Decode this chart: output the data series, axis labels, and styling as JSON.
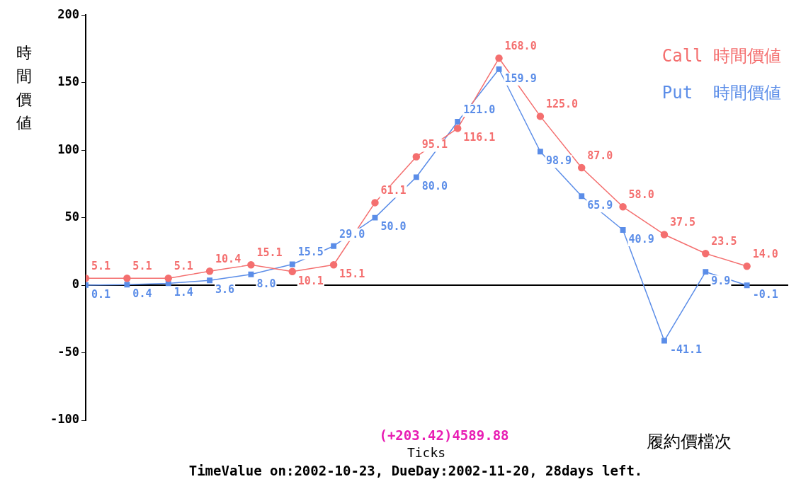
{
  "chart_data": {
    "type": "line",
    "xlabel": "Ticks",
    "ylabel": "時間價値",
    "categories": [
      null,
      null,
      null,
      null,
      null,
      null,
      null,
      null,
      null,
      null,
      null,
      null,
      null,
      null,
      null,
      null,
      null
    ],
    "series": [
      {
        "name": "Call 時間價値",
        "color": "#f46f6f",
        "marker": "circle",
        "values": [
          5.1,
          5.1,
          5.1,
          10.4,
          15.1,
          10.1,
          15.1,
          61.1,
          95.1,
          116.1,
          168.0,
          125.0,
          87.0,
          58.0,
          37.5,
          23.5,
          14.0
        ],
        "value_labels": [
          "5.1",
          "5.1",
          "5.1",
          "10.4",
          "15.1",
          "10.1",
          "15.1",
          "61.1",
          "95.1",
          "116.1",
          "168.0",
          "125.0",
          "87.0",
          "58.0",
          "37.5",
          "23.5",
          "14.0"
        ]
      },
      {
        "name": "Put  時間價値",
        "color": "#5b8de8",
        "marker": "square",
        "values": [
          0.1,
          0.4,
          1.4,
          3.6,
          8.0,
          15.5,
          29.0,
          50.0,
          80.0,
          121.0,
          159.9,
          98.9,
          65.9,
          40.9,
          -41.1,
          9.9,
          -0.1
        ],
        "value_labels": [
          "0.1",
          "0.4",
          "1.4",
          "3.6",
          "8.0",
          "15.5",
          "29.0",
          "50.0",
          "80.0",
          "121.0",
          "159.9",
          "98.9",
          "65.9",
          "40.9",
          "-41.1",
          "9.9",
          "-0.1"
        ]
      }
    ],
    "ylim": [
      -100,
      200
    ],
    "yticks": [
      -100,
      -50,
      0,
      50,
      100,
      150,
      200
    ],
    "grid": false,
    "legend": "top right",
    "line_style": "solid",
    "ref_lines": [
      {
        "axis": "y",
        "value": 0,
        "color": "#000000"
      }
    ],
    "annotations": [
      "(+203.42)4589.88",
      "履約價檔次",
      "TimeValue on:2002-10-23, DueDay:2002-11-20, 28days left."
    ]
  }
}
